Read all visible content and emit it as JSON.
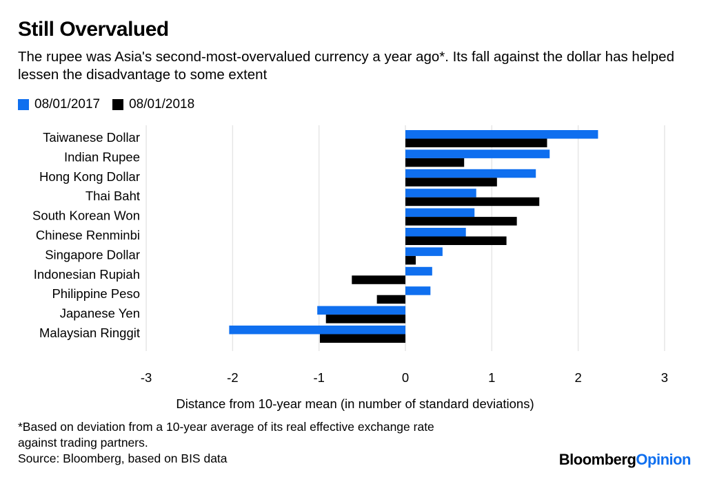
{
  "title": "Still Overvalued",
  "subtitle": "The rupee was Asia's second-most-overvalued currency a year ago*. Its fall against the dollar has helped lessen the disadvantage to some extent",
  "footnote": [
    "*Based on deviation from a 10-year average of its real effective exchange rate",
    "against trading partners.",
    "Source: Bloomberg, based on BIS data"
  ],
  "logo": {
    "part1": "Bloomberg",
    "part2": "Opinion"
  },
  "chart_data": {
    "type": "bar",
    "orientation": "horizontal",
    "categories": [
      "Taiwanese Dollar",
      "Indian Rupee",
      "Hong Kong Dollar",
      "Thai Baht",
      "South Korean Won",
      "Chinese Renminbi",
      "Singapore Dollar",
      "Indonesian Rupiah",
      "Philippine Peso",
      "Japanese Yen",
      "Malaysian Ringgit"
    ],
    "series": [
      {
        "name": "08/01/2017",
        "color": "#0f6fef",
        "values": [
          2.23,
          1.67,
          1.51,
          0.82,
          0.8,
          0.7,
          0.43,
          0.31,
          0.29,
          -1.02,
          -2.04
        ]
      },
      {
        "name": "08/01/2018",
        "color": "#000000",
        "values": [
          1.64,
          0.68,
          1.06,
          1.55,
          1.29,
          1.17,
          0.12,
          -0.62,
          -0.33,
          -0.92,
          -0.99
        ]
      }
    ],
    "xlabel": "Distance from 10-year mean (in number of standard deviations)",
    "xlim": [
      -3,
      3
    ],
    "xticks": [
      "-3",
      "-2",
      "-1",
      "0",
      "1",
      "2",
      "3"
    ],
    "grid": true,
    "legend_position": "top-left"
  }
}
